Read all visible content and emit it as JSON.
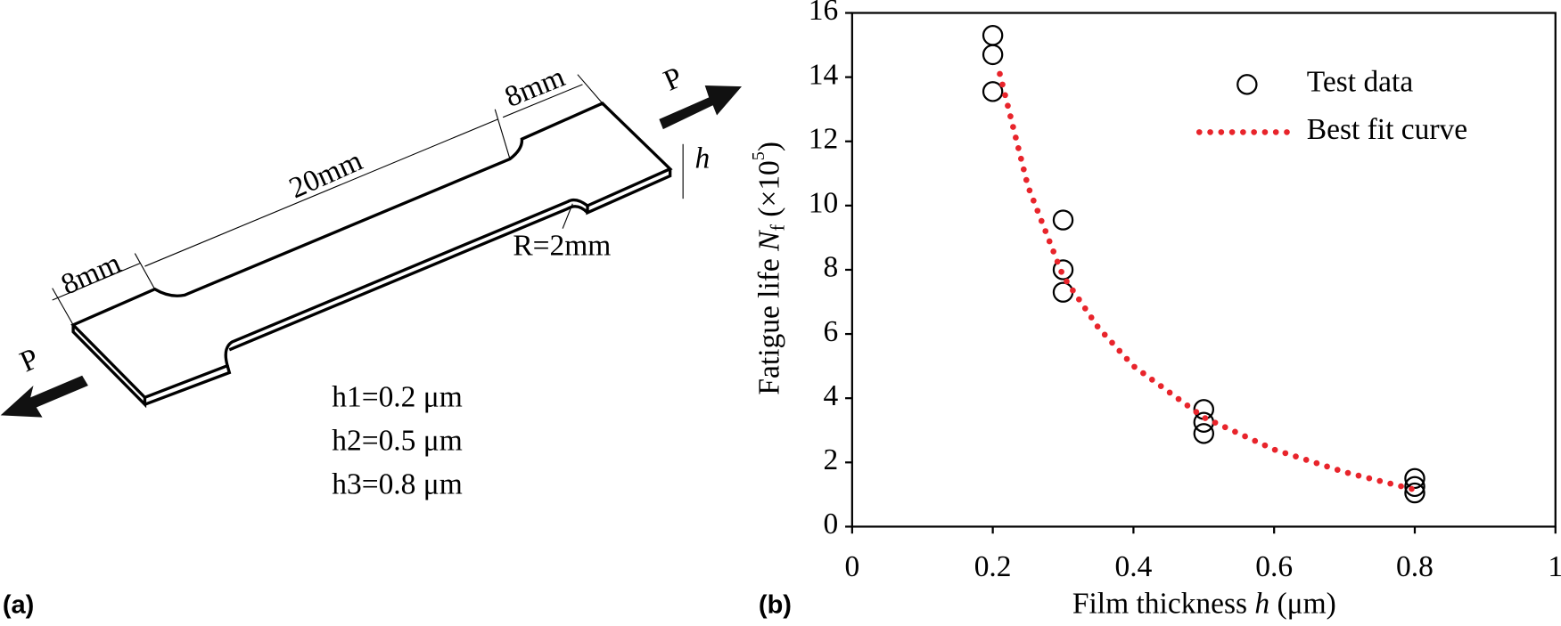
{
  "diagram": {
    "panel_label": "(a)",
    "dimensions": [
      "8mm",
      "20mm",
      "8mm"
    ],
    "thickness": "h",
    "radius": "R=2mm",
    "loads": [
      "P",
      "P"
    ],
    "thicknesses": [
      "h1=0.2 μm",
      "h2=0.5 μm",
      "h3=0.8 μm"
    ]
  },
  "chart_data": {
    "type": "scatter",
    "panel_label": "(b)",
    "xlabel": {
      "text": "Film thickness ",
      "symbol": "h",
      "unit": " (μm)"
    },
    "ylabel": {
      "text": "Fatigue life ",
      "symbol": "N",
      "subscript": "f",
      "unit": " (×10",
      "exponent": "5",
      "close": ")"
    },
    "xlim": [
      0,
      1
    ],
    "ylim": [
      0,
      16
    ],
    "xticks": [
      0,
      0.2,
      0.4,
      0.6,
      0.8,
      1
    ],
    "yticks": [
      0,
      2,
      4,
      6,
      8,
      10,
      12,
      14,
      16
    ],
    "legend": "upper right",
    "series": [
      {
        "name": "Test data",
        "color": "#000000",
        "marker": "open-circle",
        "x": [
          0.2,
          0.2,
          0.2,
          0.3,
          0.3,
          0.3,
          0.5,
          0.5,
          0.5,
          0.8,
          0.8,
          0.8
        ],
        "values": [
          15.3,
          14.7,
          13.55,
          9.55,
          8.0,
          7.3,
          3.65,
          3.25,
          2.9,
          1.5,
          1.25,
          1.05
        ]
      },
      {
        "name": "Best fit curve",
        "color": "#e8242b",
        "line": "dotted",
        "x": [
          0.21,
          0.25,
          0.3,
          0.35,
          0.4,
          0.5,
          0.6,
          0.7,
          0.8
        ],
        "values": [
          14.1,
          10.6,
          7.8,
          6.2,
          5.0,
          3.4,
          2.4,
          1.7,
          1.15
        ]
      }
    ]
  }
}
